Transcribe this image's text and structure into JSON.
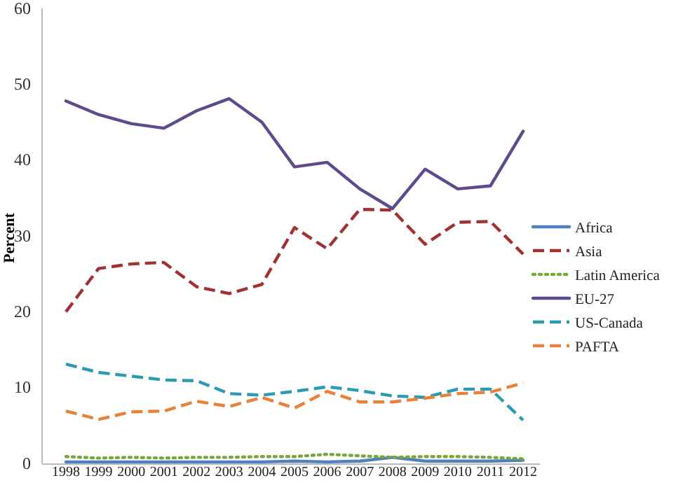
{
  "chart_data": {
    "type": "line",
    "ylabel": "Percent",
    "categories": [
      "1998",
      "1999",
      "2000",
      "2001",
      "2002",
      "2003",
      "2004",
      "2005",
      "2006",
      "2007",
      "2008",
      "2009",
      "2010",
      "2011",
      "2012"
    ],
    "ylim": [
      0,
      60
    ],
    "yticks": [
      0,
      10,
      20,
      30,
      40,
      50,
      60
    ],
    "grid": false,
    "legend": "right",
    "series": [
      {
        "name": "Africa",
        "color": "#4f81bd",
        "line_style": "solid",
        "values": [
          0.2,
          0.2,
          0.2,
          0.2,
          0.2,
          0.2,
          0.2,
          0.3,
          0.2,
          0.3,
          0.8,
          0.3,
          0.3,
          0.3,
          0.4
        ]
      },
      {
        "name": "Asia",
        "color": "#a03234",
        "line_style": "dashed",
        "values": [
          20,
          25.7,
          26.3,
          26.5,
          23.3,
          22.4,
          23.6,
          31.1,
          28.3,
          33.5,
          33.4,
          28.9,
          31.8,
          31.9,
          27.6
        ]
      },
      {
        "name": "Latin America",
        "color": "#77a83c",
        "line_style": "dotted",
        "values": [
          0.9,
          0.7,
          0.8,
          0.7,
          0.8,
          0.8,
          0.9,
          0.9,
          1.2,
          1,
          0.8,
          0.9,
          0.9,
          0.8,
          0.6
        ]
      },
      {
        "name": "EU-27",
        "color": "#5f4b8b",
        "line_style": "solid",
        "values": [
          47.8,
          46,
          44.8,
          44.2,
          46.5,
          48.1,
          45,
          39.1,
          39.7,
          36.2,
          33.6,
          38.8,
          36.2,
          36.6,
          43.8
        ]
      },
      {
        "name": "US-Canada",
        "color": "#2c9bb2",
        "line_style": "dashed",
        "values": [
          13.1,
          12,
          11.5,
          11,
          10.9,
          9.2,
          9,
          9.5,
          10.1,
          9.6,
          8.9,
          8.7,
          9.8,
          9.8,
          5.7
        ]
      },
      {
        "name": "PAFTA",
        "color": "#e8823a",
        "line_style": "dashed",
        "values": [
          6.9,
          5.8,
          6.8,
          6.9,
          8.2,
          7.5,
          8.7,
          7.3,
          9.5,
          8.1,
          8.1,
          8.6,
          9.2,
          9.4,
          10.6
        ]
      }
    ]
  }
}
